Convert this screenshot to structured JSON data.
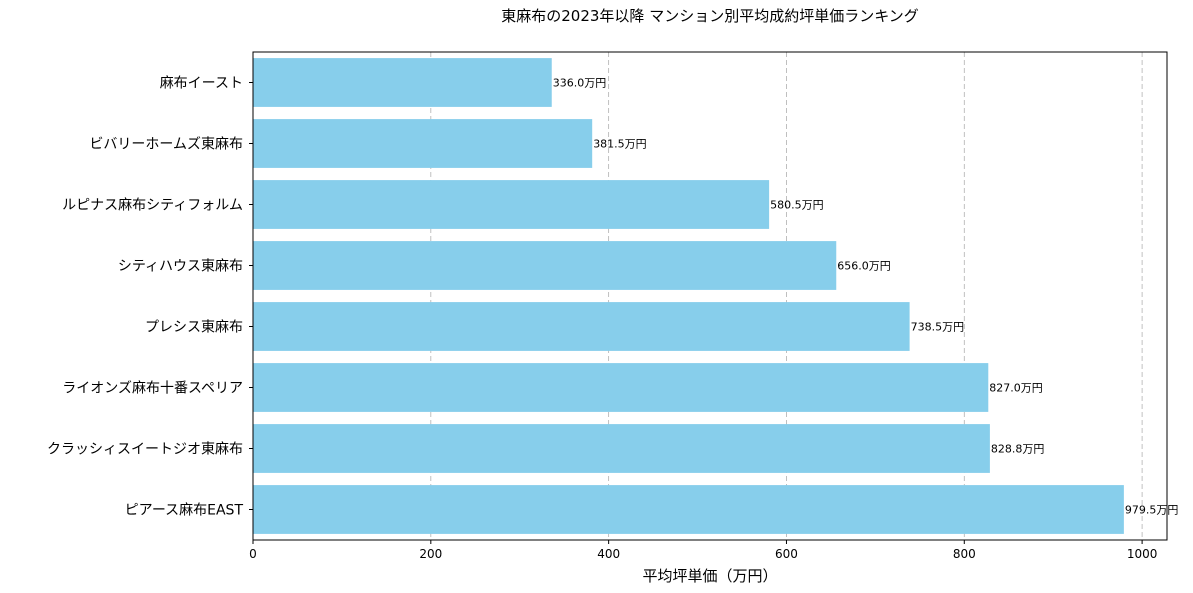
{
  "chart_data": {
    "type": "bar",
    "orientation": "horizontal",
    "title": "東麻布の2023年以降 マンション別平均成約坪単価ランキング",
    "xlabel": "平均坪単価（万円）",
    "ylabel": "",
    "xlim": [
      0,
      1028
    ],
    "xticks": [
      0,
      200,
      400,
      600,
      800,
      1000
    ],
    "grid": "x-dashed",
    "color": "#87CEEB",
    "categories": [
      "麻布イースト",
      "ビバリーホームズ東麻布",
      "ルピナス麻布シティフォルム",
      "シティハウス東麻布",
      "プレシス東麻布",
      "ライオンズ麻布十番スペリア",
      "クラッシィスイートジオ東麻布",
      "ピアース麻布EAST"
    ],
    "values": [
      336.0,
      381.5,
      580.5,
      656.0,
      738.5,
      827.0,
      828.8,
      979.5
    ],
    "value_labels": [
      "336.0万円",
      "381.5万円",
      "580.5万円",
      "656.0万円",
      "738.5万円",
      "827.0万円",
      "828.8万円",
      "979.5万円"
    ]
  }
}
